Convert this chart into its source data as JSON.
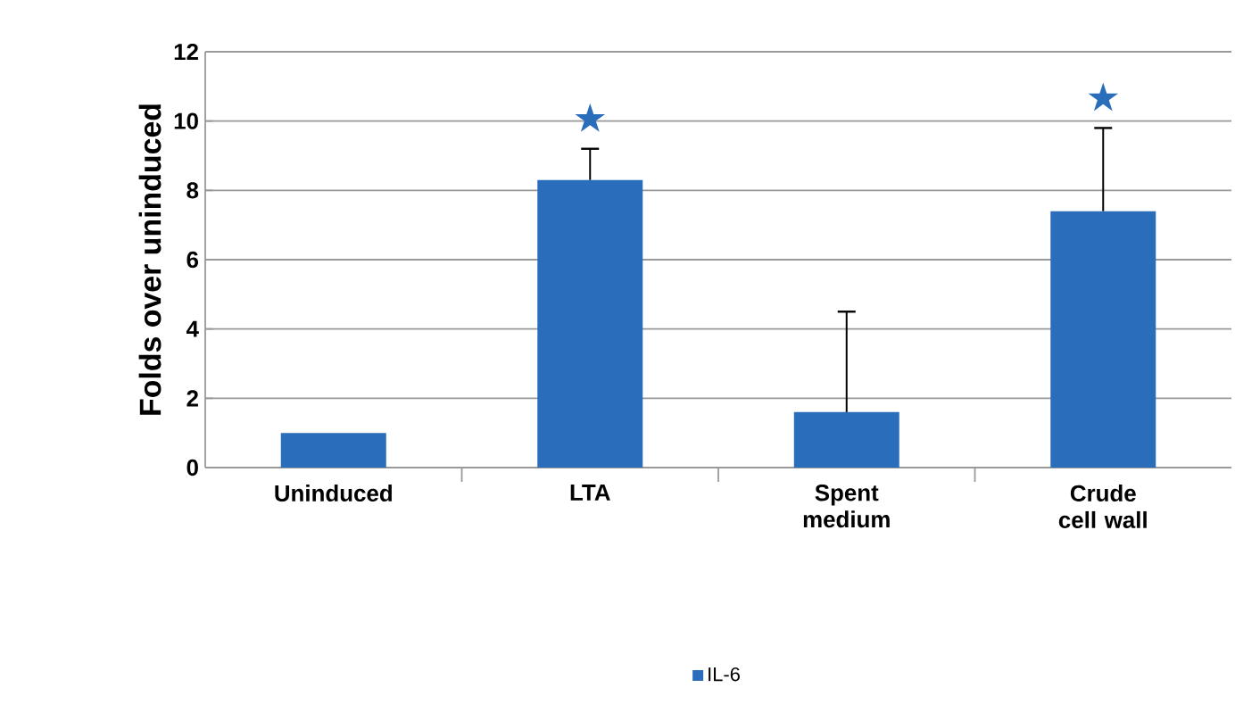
{
  "chart_data": {
    "type": "bar",
    "ylabel": "Folds over uninduced",
    "categories": [
      "Uninduced",
      "LTA",
      "Spent medium",
      "Crude cell wall"
    ],
    "series": [
      {
        "name": "IL-6",
        "color": "#2a6ebb",
        "values": [
          1.0,
          8.3,
          1.6,
          7.4
        ],
        "errors": [
          null,
          [
            8.3,
            9.2
          ],
          [
            1.6,
            4.5
          ],
          [
            7.4,
            9.8
          ]
        ]
      }
    ],
    "ylim": [
      0,
      12
    ],
    "yticks": [
      0,
      2,
      4,
      6,
      8,
      10,
      12
    ],
    "grid": "y",
    "legend": "bottom",
    "annotations": [
      "★",
      "★"
    ]
  }
}
